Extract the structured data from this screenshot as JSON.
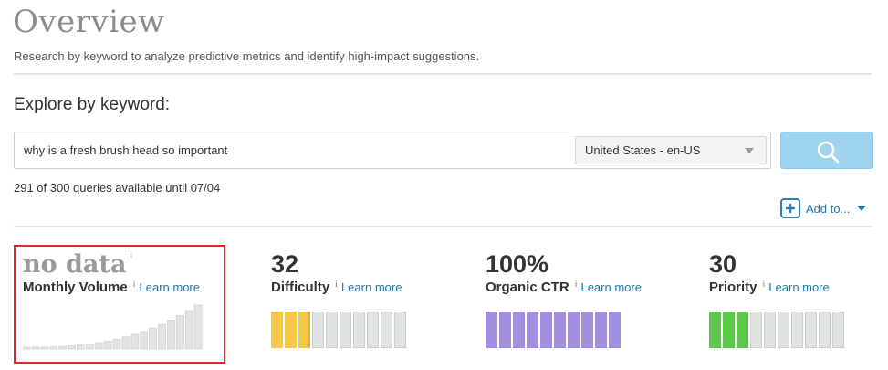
{
  "header": {
    "title": "Overview",
    "subtitle": "Research by keyword to analyze predictive metrics and identify high-impact suggestions."
  },
  "explore": {
    "label": "Explore by keyword:",
    "query": "why is a fresh brush head so important",
    "locale": "United States - en-US",
    "search_icon": "search-icon"
  },
  "quota": "291 of 300 queries available until 07/04",
  "add_to": "Add to...",
  "metrics": {
    "volume": {
      "value": "no data",
      "info": "i",
      "label": "Monthly Volume",
      "learn": "Learn more"
    },
    "difficulty": {
      "value": "32",
      "label": "Difficulty",
      "info": "i",
      "learn": "Learn more",
      "filled": 3,
      "total": 10,
      "color": "#f5c84c",
      "accent": "#e0b32a"
    },
    "ctr": {
      "value": "100%",
      "label": "Organic CTR",
      "info": "i",
      "learn": "Learn more",
      "filled": 10,
      "total": 10,
      "color": "#a08ee0"
    },
    "priority": {
      "value": "30",
      "label": "Priority",
      "info": "i",
      "learn": "Learn more",
      "filled": 3,
      "total": 10,
      "color": "#5cc84a"
    }
  },
  "colors": {
    "link": "#2276b2",
    "search_button": "#9ed4ef",
    "highlight": "#e3262d",
    "empty_segment": "#dfe3e1"
  }
}
